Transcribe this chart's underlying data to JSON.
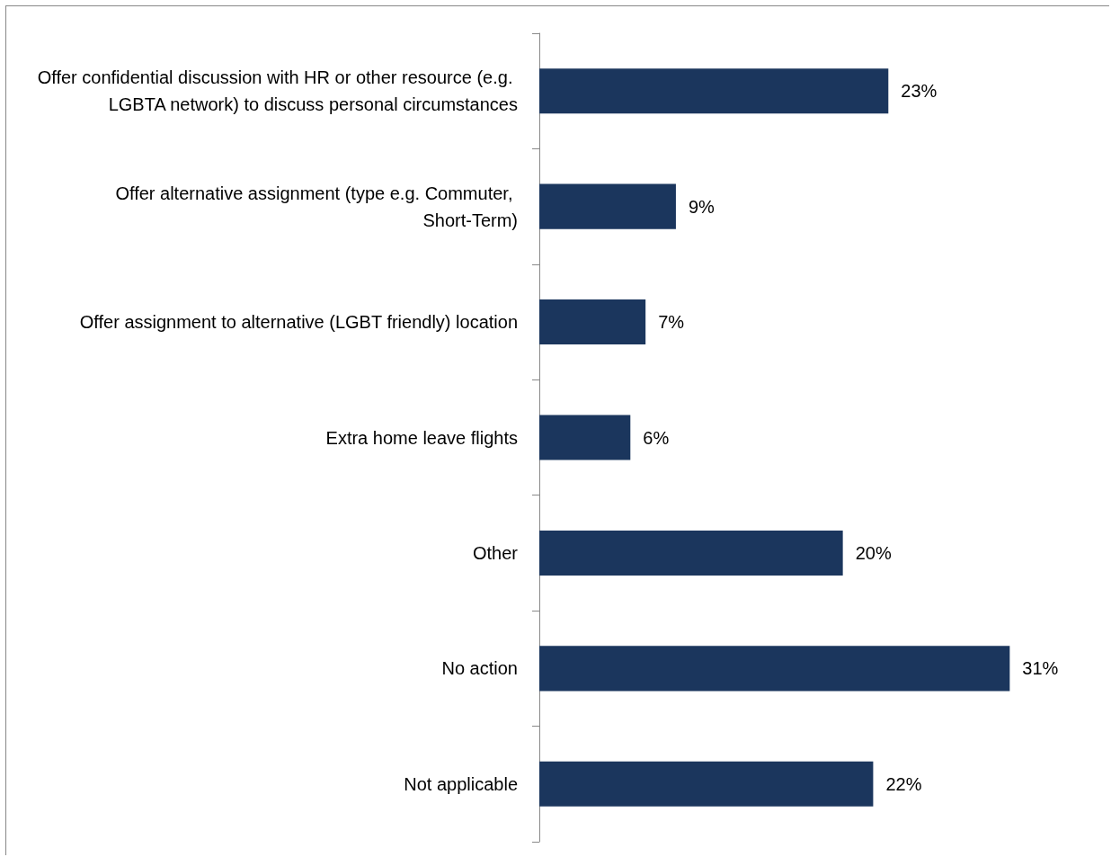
{
  "chart_data": {
    "type": "bar",
    "orientation": "horizontal",
    "categories": [
      "Offer confidential discussion with HR or other resource (e.g. LGBTA network) to discuss personal circumstances",
      "Offer alternative assignment (type e.g. Commuter, Short-Term)",
      "Offer assignment to alternative (LGBT friendly) location",
      "Extra home leave flights",
      "Other",
      "No action",
      "Not applicable"
    ],
    "values": [
      23,
      9,
      7,
      6,
      20,
      31,
      22
    ],
    "value_labels": [
      "23%",
      "9%",
      "7%",
      "6%",
      "20%",
      "31%",
      "22%"
    ],
    "color": "#1b365d"
  }
}
